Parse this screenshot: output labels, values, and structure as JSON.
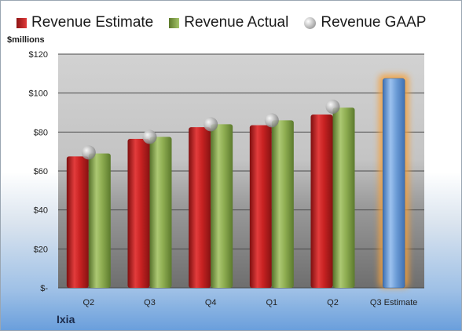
{
  "company": "Ixia",
  "chart_data": {
    "type": "bar",
    "unit_label": "$millions",
    "categories": [
      "Q2",
      "Q3",
      "Q4",
      "Q1",
      "Q2",
      "Q3 Estimate"
    ],
    "series": [
      {
        "name": "Revenue Estimate",
        "type": "bar",
        "values": [
          67.5,
          76.5,
          82.5,
          83.5,
          89,
          107.5
        ]
      },
      {
        "name": "Revenue Actual",
        "type": "bar",
        "values": [
          69,
          77.5,
          84,
          86,
          92.5,
          null
        ]
      },
      {
        "name": "Revenue GAAP",
        "type": "marker",
        "values": [
          69.5,
          77.5,
          84,
          86,
          93,
          null
        ]
      }
    ],
    "y_ticks": [
      "$-",
      "$20",
      "$40",
      "$60",
      "$80",
      "$100",
      "$120"
    ],
    "ylim": [
      0,
      120
    ],
    "grid": true,
    "legend_position": "top",
    "highlight_category": "Q3 Estimate",
    "colors": {
      "estimate": "#d12b2b",
      "actual": "#8fb04f",
      "gaap": "#c0c0c0",
      "highlight_bar": "#6f9fd8",
      "highlight_glow": "#f5a03a"
    }
  }
}
